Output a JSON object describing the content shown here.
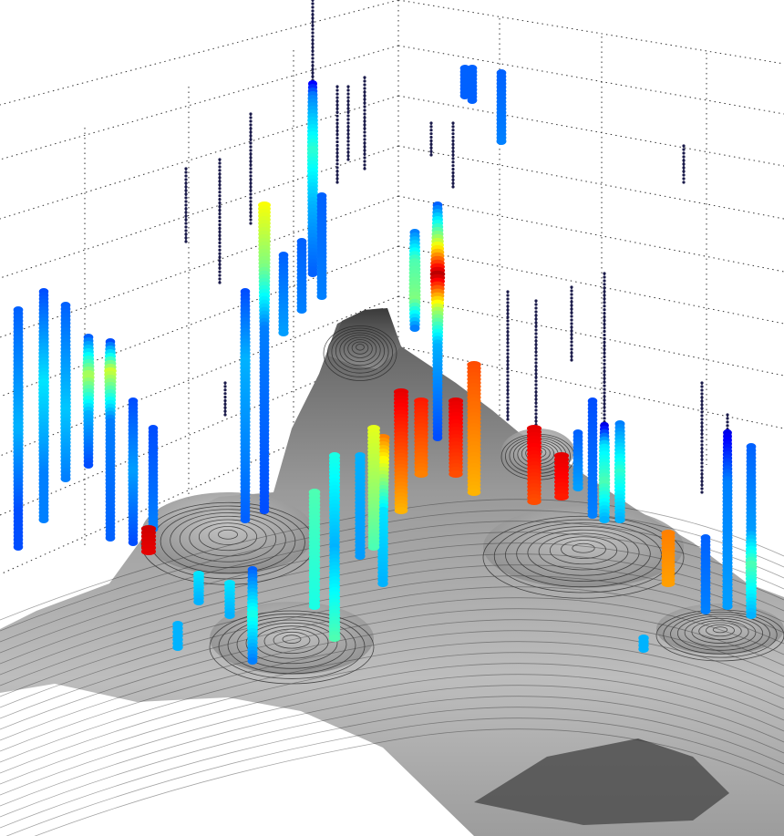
{
  "chart_data": {
    "type": "scatter",
    "view": "3d",
    "title": "",
    "xlabel": "",
    "ylabel": "",
    "zlabel": "",
    "grid": true,
    "legend": "none",
    "colormap": "jet",
    "surface": {
      "kind": "terrain",
      "shading": "grayscale",
      "contours": true
    },
    "wells": [
      {
        "id": "w1",
        "pos": [
          20,
          340,
          600
        ],
        "vals": [
          [
            0.0,
            0.22
          ],
          [
            0.5,
            0.3
          ],
          [
            0.85,
            0.2
          ]
        ]
      },
      {
        "id": "w2",
        "pos": [
          48,
          320,
          570
        ],
        "vals": [
          [
            0.0,
            0.2
          ],
          [
            0.4,
            0.35
          ],
          [
            0.8,
            0.25
          ]
        ]
      },
      {
        "id": "w3",
        "pos": [
          72,
          335,
          525
        ],
        "vals": [
          [
            0.0,
            0.22
          ],
          [
            0.6,
            0.32
          ],
          [
            1,
            0.25
          ]
        ]
      },
      {
        "id": "w4",
        "pos": [
          97,
          370,
          510
        ],
        "vals": [
          [
            0.0,
            0.22
          ],
          [
            0.3,
            0.55
          ],
          [
            0.6,
            0.3
          ],
          [
            1,
            0.2
          ]
        ]
      },
      {
        "id": "w5",
        "pos": [
          121,
          375,
          590
        ],
        "vals": [
          [
            0.0,
            0.2
          ],
          [
            0.15,
            0.58
          ],
          [
            0.4,
            0.25
          ],
          [
            1,
            0.22
          ]
        ]
      },
      {
        "id": "w6",
        "pos": [
          146,
          440,
          595
        ],
        "vals": [
          [
            0.0,
            0.2
          ],
          [
            0.5,
            0.28
          ],
          [
            1,
            0.2
          ]
        ]
      },
      {
        "id": "w7",
        "pos": [
          168,
          470,
          580
        ],
        "vals": [
          [
            0.0,
            0.2
          ],
          [
            1,
            0.25
          ]
        ]
      },
      {
        "id": "w8",
        "pos": [
          204,
          185,
          265
        ],
        "vals": [
          [
            0.0,
            0.05
          ],
          [
            1,
            0.05
          ]
        ]
      },
      {
        "id": "w9",
        "pos": [
          241,
          175,
          310
        ],
        "vals": [
          [
            0.0,
            0.05
          ],
          [
            1,
            0.05
          ]
        ]
      },
      {
        "id": "w10",
        "pos": [
          247,
          420,
          455
        ],
        "vals": [
          [
            0.0,
            0.05
          ],
          [
            1,
            0.05
          ]
        ]
      },
      {
        "id": "w11",
        "pos": [
          269,
          320,
          570
        ],
        "vals": [
          [
            0.0,
            0.2
          ],
          [
            0.3,
            0.3
          ],
          [
            1,
            0.22
          ]
        ]
      },
      {
        "id": "w12",
        "pos": [
          275,
          125,
          245
        ],
        "vals": [
          [
            0.0,
            0.05
          ],
          [
            1,
            0.05
          ]
        ]
      },
      {
        "id": "w13",
        "pos": [
          290,
          225,
          560
        ],
        "vals": [
          [
            0.0,
            0.62
          ],
          [
            0.2,
            0.5
          ],
          [
            0.4,
            0.25
          ],
          [
            1,
            0.2
          ]
        ]
      },
      {
        "id": "w14",
        "pos": [
          311,
          280,
          365
        ],
        "vals": [
          [
            0.0,
            0.22
          ],
          [
            1,
            0.28
          ]
        ]
      },
      {
        "id": "w15",
        "pos": [
          331,
          265,
          340
        ],
        "vals": [
          [
            0.0,
            0.22
          ],
          [
            1,
            0.25
          ]
        ]
      },
      {
        "id": "w16",
        "pos": [
          343,
          0,
          300
        ],
        "vals": [
          [
            0.0,
            0.05
          ],
          [
            0.28,
            0.05
          ],
          [
            0.35,
            0.25
          ],
          [
            0.55,
            0.42
          ],
          [
            0.75,
            0.3
          ],
          [
            0.9,
            0.25
          ],
          [
            1,
            0.22
          ]
        ]
      },
      {
        "id": "w17",
        "pos": [
          353,
          215,
          325
        ],
        "vals": [
          [
            0.0,
            0.22
          ],
          [
            1,
            0.25
          ]
        ]
      },
      {
        "id": "w18",
        "pos": [
          370,
          95,
          200
        ],
        "vals": [
          [
            0.0,
            0.05
          ],
          [
            1,
            0.05
          ]
        ]
      },
      {
        "id": "w19",
        "pos": [
          382,
          95,
          175
        ],
        "vals": [
          [
            0.0,
            0.05
          ],
          [
            1,
            0.05
          ]
        ]
      },
      {
        "id": "w20",
        "pos": [
          400,
          85,
          185
        ],
        "vals": [
          [
            0.0,
            0.05
          ],
          [
            1,
            0.05
          ]
        ]
      },
      {
        "id": "w21",
        "pos": [
          473,
          135,
          170
        ],
        "vals": [
          [
            0.0,
            0.05
          ],
          [
            1,
            0.05
          ]
        ]
      },
      {
        "id": "w22",
        "pos": [
          497,
          135,
          205
        ],
        "vals": [
          [
            0.0,
            0.05
          ],
          [
            1,
            0.05
          ]
        ]
      },
      {
        "id": "w23",
        "pos": [
          455,
          255,
          360
        ],
        "vals": [
          [
            0.0,
            0.25
          ],
          [
            0.3,
            0.45
          ],
          [
            0.7,
            0.5
          ],
          [
            1,
            0.25
          ]
        ]
      },
      {
        "id": "w24",
        "pos": [
          480,
          225,
          480
        ],
        "vals": [
          [
            0.0,
            0.22
          ],
          [
            0.15,
            0.55
          ],
          [
            0.3,
            0.95
          ],
          [
            0.45,
            0.55
          ],
          [
            0.6,
            0.3
          ],
          [
            1,
            0.2
          ]
        ]
      },
      {
        "id": "w25",
        "pos": [
          510,
          75,
          105
        ],
        "vals": [
          [
            0.0,
            0.22
          ],
          [
            1,
            0.22
          ]
        ]
      },
      {
        "id": "w26",
        "pos": [
          518,
          75,
          110
        ],
        "vals": [
          [
            0.0,
            0.22
          ],
          [
            1,
            0.22
          ]
        ]
      },
      {
        "id": "w27",
        "pos": [
          550,
          80,
          155
        ],
        "vals": [
          [
            0.0,
            0.22
          ],
          [
            1,
            0.25
          ]
        ]
      },
      {
        "id": "w28",
        "pos": [
          557,
          320,
          460
        ],
        "vals": [
          [
            0.0,
            0.05
          ],
          [
            1,
            0.05
          ]
        ]
      },
      {
        "id": "w29",
        "pos": [
          588,
          330,
          470
        ],
        "vals": [
          [
            0.0,
            0.05
          ],
          [
            1,
            0.05
          ]
        ]
      },
      {
        "id": "w30",
        "pos": [
          627,
          315,
          395
        ],
        "vals": [
          [
            0.0,
            0.05
          ],
          [
            1,
            0.05
          ]
        ]
      },
      {
        "id": "w31",
        "pos": [
          634,
          475,
          535
        ],
        "vals": [
          [
            0.0,
            0.22
          ],
          [
            1,
            0.28
          ]
        ]
      },
      {
        "id": "w32",
        "pos": [
          650,
          440,
          565
        ],
        "vals": [
          [
            0.0,
            0.2
          ],
          [
            1,
            0.25
          ]
        ]
      },
      {
        "id": "w33",
        "pos": [
          663,
          300,
          570
        ],
        "vals": [
          [
            0.0,
            0.05
          ],
          [
            0.6,
            0.05
          ],
          [
            0.7,
            0.35
          ],
          [
            0.85,
            0.45
          ],
          [
            1,
            0.3
          ]
        ]
      },
      {
        "id": "w34",
        "pos": [
          680,
          465,
          570
        ],
        "vals": [
          [
            0.0,
            0.25
          ],
          [
            0.5,
            0.42
          ],
          [
            1,
            0.3
          ]
        ]
      },
      {
        "id": "w35",
        "pos": [
          750,
          160,
          200
        ],
        "vals": [
          [
            0.0,
            0.05
          ],
          [
            1,
            0.05
          ]
        ]
      },
      {
        "id": "w36",
        "pos": [
          770,
          420,
          540
        ],
        "vals": [
          [
            0.0,
            0.05
          ],
          [
            1,
            0.05
          ]
        ]
      },
      {
        "id": "w37",
        "pos": [
          774,
          590,
          670
        ],
        "vals": [
          [
            0.0,
            0.22
          ],
          [
            1,
            0.25
          ]
        ]
      },
      {
        "id": "w38",
        "pos": [
          798,
          455,
          665
        ],
        "vals": [
          [
            0.0,
            0.05
          ],
          [
            0.35,
            0.25
          ],
          [
            1,
            0.28
          ]
        ]
      },
      {
        "id": "w39",
        "pos": [
          824,
          490,
          675
        ],
        "vals": [
          [
            0.0,
            0.22
          ],
          [
            0.5,
            0.28
          ],
          [
            0.7,
            0.45
          ],
          [
            1,
            0.3
          ]
        ]
      },
      {
        "id": "w40",
        "pos": [
          277,
          625,
          725
        ],
        "vals": [
          [
            0.0,
            0.22
          ],
          [
            0.5,
            0.4
          ],
          [
            1,
            0.25
          ]
        ]
      },
      {
        "id": "w41",
        "pos": [
          367,
          500,
          700
        ],
        "vals": [
          [
            0.0,
            0.4
          ],
          [
            0.5,
            0.3
          ],
          [
            1,
            0.45
          ]
        ]
      },
      {
        "id": "w42",
        "pos": [
          395,
          500,
          610
        ],
        "vals": [
          [
            0.0,
            0.3
          ],
          [
            1,
            0.28
          ]
        ]
      },
      {
        "id": "w43",
        "pos": [
          420,
          480,
          640
        ],
        "vals": [
          [
            0.0,
            0.75
          ],
          [
            0.5,
            0.35
          ],
          [
            1,
            0.3
          ]
        ]
      },
      {
        "id": "w44",
        "pos": [
          440,
          430,
          560
        ],
        "vals": [
          [
            0.0,
            0.9
          ],
          [
            1,
            0.7
          ]
        ]
      },
      {
        "id": "w45",
        "pos": [
          462,
          440,
          520
        ],
        "vals": [
          [
            0.0,
            0.85
          ],
          [
            1,
            0.75
          ]
        ]
      },
      {
        "id": "w46",
        "pos": [
          500,
          440,
          520
        ],
        "vals": [
          [
            0.0,
            0.9
          ],
          [
            1,
            0.8
          ]
        ]
      },
      {
        "id": "w47",
        "pos": [
          520,
          400,
          540
        ],
        "vals": [
          [
            0.0,
            0.8
          ],
          [
            1,
            0.7
          ]
        ]
      },
      {
        "id": "w48",
        "pos": [
          586,
          470,
          550
        ],
        "vals": [
          [
            0.0,
            0.9
          ],
          [
            1,
            0.8
          ]
        ]
      },
      {
        "id": "w49",
        "pos": [
          616,
          500,
          545
        ],
        "vals": [
          [
            0.0,
            0.9
          ],
          [
            1,
            0.85
          ]
        ]
      },
      {
        "id": "w50",
        "pos": [
          733,
          585,
          640
        ],
        "vals": [
          [
            0.0,
            0.75
          ],
          [
            1,
            0.72
          ]
        ]
      },
      {
        "id": "w51",
        "pos": [
          163,
          580,
          605
        ],
        "vals": [
          [
            0.0,
            0.92
          ],
          [
            1,
            0.9
          ]
        ]
      },
      {
        "id": "w52",
        "pos": [
          218,
          630,
          660
        ],
        "vals": [
          [
            0.0,
            0.35
          ],
          [
            1,
            0.3
          ]
        ]
      },
      {
        "id": "w53",
        "pos": [
          252,
          640,
          675
        ],
        "vals": [
          [
            0.0,
            0.35
          ],
          [
            1,
            0.3
          ]
        ]
      },
      {
        "id": "w54",
        "pos": [
          195,
          685,
          710
        ],
        "vals": [
          [
            0.0,
            0.3
          ],
          [
            1,
            0.3
          ]
        ]
      },
      {
        "id": "w55",
        "pos": [
          345,
          540,
          665
        ],
        "vals": [
          [
            0.0,
            0.45
          ],
          [
            1,
            0.4
          ]
        ]
      },
      {
        "id": "w56",
        "pos": [
          410,
          470,
          600
        ],
        "vals": [
          [
            0.0,
            0.6
          ],
          [
            1,
            0.45
          ]
        ]
      },
      {
        "id": "w57",
        "pos": [
          706,
          700,
          712
        ],
        "vals": [
          [
            0.0,
            0.3
          ],
          [
            1,
            0.3
          ]
        ]
      }
    ]
  }
}
